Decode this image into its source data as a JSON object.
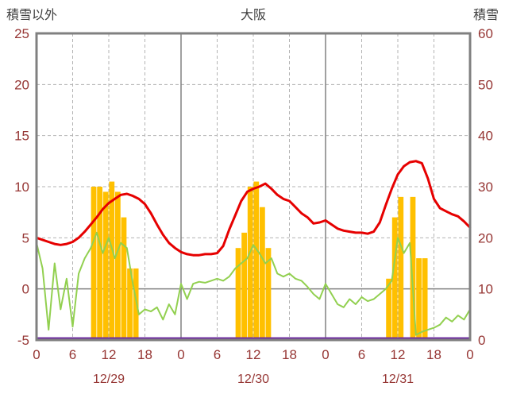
{
  "header": {
    "left_axis_title": "積雪以外",
    "chart_title": "大阪",
    "right_axis_title": "積雪"
  },
  "chart_data": {
    "type": "combo",
    "title": "大阪",
    "x_axis": {
      "hours_total": 72,
      "tick_step": 6,
      "tick_labels": [
        "0",
        "6",
        "12",
        "18",
        "0",
        "6",
        "12",
        "18",
        "0",
        "6",
        "12",
        "18",
        "0"
      ],
      "day_labels": [
        "12/29",
        "12/30",
        "12/31"
      ],
      "day_label_hours": [
        12,
        36,
        60
      ]
    },
    "left_axis": {
      "label": "積雪以外",
      "min": -5,
      "max": 25,
      "ticks": [
        25,
        20,
        15,
        10,
        5,
        0,
        -5
      ]
    },
    "right_axis": {
      "label": "積雪",
      "min": 0,
      "max": 60,
      "ticks": [
        60,
        50,
        40,
        30,
        20,
        10,
        0
      ]
    },
    "grid": {
      "dashed_color": "#b3b3b3",
      "solid_color": "#808080",
      "border_color": "#808080"
    },
    "series": [
      {
        "name": "red-line",
        "type": "line",
        "axis": "left",
        "color": "#e60000",
        "width": 3,
        "values": [
          5.0,
          4.8,
          4.6,
          4.4,
          4.3,
          4.4,
          4.6,
          5.0,
          5.6,
          6.3,
          7.0,
          7.8,
          8.4,
          8.8,
          9.2,
          9.3,
          9.1,
          8.8,
          8.3,
          7.4,
          6.3,
          5.3,
          4.5,
          4.0,
          3.6,
          3.4,
          3.3,
          3.3,
          3.4,
          3.4,
          3.5,
          4.2,
          5.8,
          7.2,
          8.6,
          9.5,
          9.8,
          10.0,
          10.3,
          9.8,
          9.2,
          8.8,
          8.6,
          8.0,
          7.4,
          7.0,
          6.4,
          6.5,
          6.7,
          6.3,
          5.9,
          5.7,
          5.6,
          5.5,
          5.5,
          5.4,
          5.6,
          6.5,
          8.2,
          9.8,
          11.2,
          12.0,
          12.4,
          12.5,
          12.3,
          10.8,
          8.8,
          7.9,
          7.6,
          7.3,
          7.1,
          6.6,
          6.0
        ]
      },
      {
        "name": "green-line",
        "type": "line",
        "axis": "left",
        "color": "#92d050",
        "width": 2,
        "values": [
          4.5,
          2.0,
          -4.0,
          2.5,
          -2.0,
          1.0,
          -3.7,
          1.5,
          3.0,
          4.0,
          5.5,
          3.5,
          5.0,
          3.0,
          4.5,
          4.0,
          0.5,
          -2.5,
          -2.0,
          -2.2,
          -1.8,
          -3.0,
          -1.5,
          -2.5,
          0.5,
          -1.0,
          0.5,
          0.7,
          0.6,
          0.8,
          1.0,
          0.8,
          1.2,
          2.0,
          2.5,
          3.0,
          4.3,
          3.5,
          2.5,
          3.0,
          1.5,
          1.2,
          1.5,
          1.0,
          0.8,
          0.2,
          -0.5,
          -1.0,
          0.5,
          -0.5,
          -1.5,
          -1.8,
          -1.0,
          -1.5,
          -0.8,
          -1.2,
          -1.0,
          -0.5,
          0.0,
          0.8,
          5.0,
          3.5,
          4.5,
          -4.5,
          -4.2,
          -4.0,
          -3.8,
          -3.5,
          -2.8,
          -3.2,
          -2.6,
          -3.0,
          -2.0
        ]
      },
      {
        "name": "orange-bars",
        "type": "bar",
        "axis": "right",
        "color": "#ffc000",
        "values": [
          0,
          0,
          0,
          0,
          0,
          0,
          0,
          0,
          0,
          30,
          30,
          29,
          31,
          29,
          24,
          14,
          14,
          0,
          0,
          0,
          0,
          0,
          0,
          0,
          0,
          0,
          0,
          0,
          0,
          0,
          0,
          0,
          0,
          18,
          21,
          30,
          31,
          26,
          18,
          0,
          0,
          0,
          0,
          0,
          0,
          0,
          0,
          0,
          0,
          0,
          0,
          0,
          0,
          0,
          0,
          0,
          0,
          0,
          12,
          24,
          28,
          0,
          28,
          16,
          16,
          0,
          0,
          0,
          0,
          0,
          0,
          0,
          0
        ]
      },
      {
        "name": "purple-line",
        "type": "line",
        "axis": "right",
        "color": "#7030a0",
        "width": 3,
        "constant_value": 0
      }
    ]
  }
}
